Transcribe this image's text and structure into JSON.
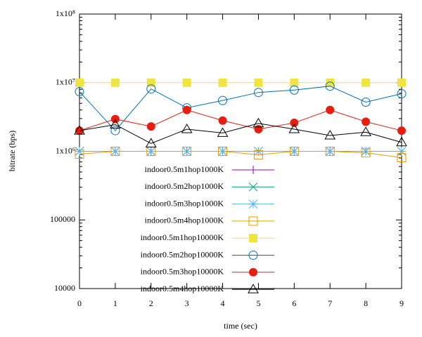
{
  "chart_data": {
    "type": "line",
    "xlabel": "time (sec)",
    "ylabel": "bitrate (bps)",
    "x": [
      0,
      1,
      2,
      3,
      4,
      5,
      6,
      7,
      8,
      9
    ],
    "xlim": [
      0,
      9
    ],
    "xticks": [
      0,
      1,
      2,
      3,
      4,
      5,
      6,
      7,
      8,
      9
    ],
    "ylim": [
      10000,
      100000000
    ],
    "yscale": "log",
    "yticks": [
      10000,
      100000,
      {
        "value": 1000000,
        "label": "1x10⁶"
      },
      {
        "value": 10000000,
        "label": "1x10⁷"
      },
      {
        "value": 100000000,
        "label": "1x10⁸"
      }
    ],
    "legend": "bottom left",
    "series": [
      {
        "name": "indoor0.5m1hop1000K",
        "color": "#9400d3",
        "marker": "plus",
        "values": [
          1000000,
          1000000,
          1000000,
          1000000,
          1000000,
          1000000,
          1000000,
          1000000,
          1000000,
          1000000
        ]
      },
      {
        "name": "indoor0.5m2hop1000K",
        "color": "#009e73",
        "marker": "cross",
        "values": [
          1000000,
          1000000,
          1000000,
          1000000,
          1000000,
          1000000,
          1000000,
          1000000,
          1000000,
          1000000
        ]
      },
      {
        "name": "indoor0.5m3hop1000K",
        "color": "#56b4e9",
        "marker": "star",
        "values": [
          1000000,
          1000000,
          1000000,
          1000000,
          1000000,
          1000000,
          1000000,
          1000000,
          1000000,
          1000000
        ]
      },
      {
        "name": "indoor0.5m4hop1000K",
        "color": "#e69f00",
        "marker": "open-square",
        "values": [
          910000,
          1000000,
          1000000,
          1000000,
          1000000,
          890000,
          1000000,
          1000000,
          950000,
          810000
        ]
      },
      {
        "name": "indoor0.5m1hop10000K",
        "color": "#f0e442",
        "marker": "filled-square",
        "values": [
          10000000,
          10000000,
          10000000,
          10000000,
          10000000,
          10000000,
          10000000,
          10000000,
          10000000,
          10000000
        ]
      },
      {
        "name": "indoor0.5m2hop10000K",
        "color": "#0072b2",
        "marker": "open-circle",
        "values": [
          7400000,
          2000000,
          8100000,
          4300000,
          5500000,
          7200000,
          7800000,
          8900000,
          5200000,
          6900000
        ]
      },
      {
        "name": "indoor0.5m3hop10000K",
        "color": "#e51e10",
        "marker": "filled-circle",
        "values": [
          2000000,
          2950000,
          2300000,
          4000000,
          2800000,
          2100000,
          2600000,
          4000000,
          2700000,
          2000000
        ]
      },
      {
        "name": "indoor0.5m4hop10000K",
        "color": "#000000",
        "marker": "open-triangle",
        "values": [
          2000000,
          2450000,
          1300000,
          2100000,
          1850000,
          2550000,
          2100000,
          1700000,
          1900000,
          1350000
        ]
      }
    ]
  }
}
